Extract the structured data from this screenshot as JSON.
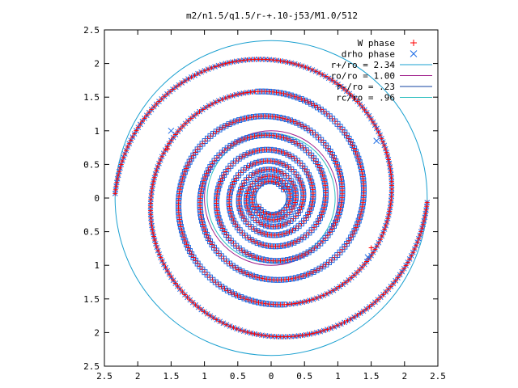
{
  "chart_data": {
    "type": "scatter",
    "title": "m2/n1.5/q1.5/r-+.10-j53/M1.0/512",
    "xlim": [
      -2.5,
      2.5
    ],
    "ylim": [
      -2.5,
      2.5
    ],
    "xticks": [
      -2.5,
      -2,
      -1.5,
      -1,
      -0.5,
      0,
      0.5,
      1,
      1.5,
      2,
      2.5
    ],
    "xtick_labels": [
      "2.5",
      "2",
      "1.5",
      "1",
      "0.5",
      "0",
      "0.5",
      "1",
      "1.5",
      "2",
      "2.5"
    ],
    "yticks": [
      2.5,
      2,
      1.5,
      1,
      0.5,
      0,
      -0.5,
      -1,
      -1.5,
      -2,
      -2.5
    ],
    "ytick_labels": [
      "2.5",
      "2",
      "1.5",
      "1",
      "0.5",
      "0",
      "0.5",
      "1",
      "1.5",
      "2",
      "2.5"
    ],
    "grid": false,
    "legend_position": "top-right",
    "series": [
      {
        "name": "W phase",
        "marker": "plus",
        "color": "#ff0000"
      },
      {
        "name": "drho phase",
        "marker": "cross",
        "color": "#1e6ee6"
      }
    ],
    "circles": [
      {
        "name": "r+/ro = 2.34",
        "radius": 2.34,
        "color": "#1aa0d0"
      },
      {
        "name": "ro/ro = 1.00",
        "radius": 1.0,
        "color": "#a0208c"
      },
      {
        "name": "r-/ro = .23",
        "radius": 0.23,
        "color": "#1040a0"
      },
      {
        "name": "rc/ro = .96",
        "radius": 0.96,
        "color": "#30c0c0"
      }
    ],
    "spiral": {
      "arms": 2,
      "r0": 0.23,
      "r_max": 2.34,
      "turns_to_max": 4.4,
      "phase": 0.6
    },
    "stray_points": [
      {
        "series": "W phase",
        "x": -1.55,
        "y": 0.73
      },
      {
        "series": "W phase",
        "x": 1.5,
        "y": -0.74
      },
      {
        "series": "drho phase",
        "x": 1.45,
        "y": -0.88
      },
      {
        "series": "drho phase",
        "x": 1.58,
        "y": 0.85
      },
      {
        "series": "drho phase",
        "x": -1.5,
        "y": 1.0
      }
    ]
  }
}
